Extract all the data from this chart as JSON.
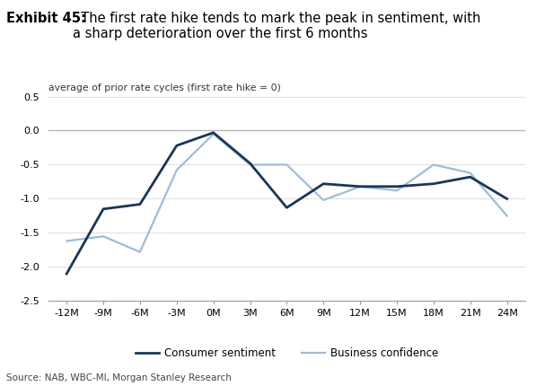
{
  "title_bold": "Exhibit 45:",
  "title_rest": "  The first rate hike tends to mark the peak in sentiment, with\na sharp deterioration over the first 6 months",
  "subtitle": "average of prior rate cycles (first rate hike = 0)",
  "source": "Source: NAB, WBC-MI, Morgan Stanley Research",
  "x_labels": [
    "-12M",
    "-9M",
    "-6M",
    "-3M",
    "0M",
    "3M",
    "6M",
    "9M",
    "12M",
    "15M",
    "18M",
    "21M",
    "24M"
  ],
  "x_values": [
    -12,
    -9,
    -6,
    -3,
    0,
    3,
    6,
    9,
    12,
    15,
    18,
    21,
    24
  ],
  "consumer_sentiment": [
    -2.1,
    -1.15,
    -1.08,
    -0.22,
    -0.03,
    -0.48,
    -1.13,
    -0.78,
    -0.82,
    -0.82,
    -0.78,
    -0.68,
    -1.0
  ],
  "business_confidence": [
    -1.62,
    -1.55,
    -1.78,
    -0.58,
    -0.05,
    -0.5,
    -0.5,
    -1.02,
    -0.82,
    -0.88,
    -0.5,
    -0.62,
    -1.25
  ],
  "ylim": [
    -2.5,
    0.5
  ],
  "yticks": [
    0.5,
    0.0,
    -0.5,
    -1.0,
    -1.5,
    -2.0,
    -2.5
  ],
  "consumer_color": "#1a3557",
  "business_color": "#9dbdd8",
  "background_color": "#ffffff",
  "grid_color": "#d0d0d0",
  "zero_line_color": "#888888",
  "legend_consumer": "Consumer sentiment",
  "legend_business": "Business confidence"
}
